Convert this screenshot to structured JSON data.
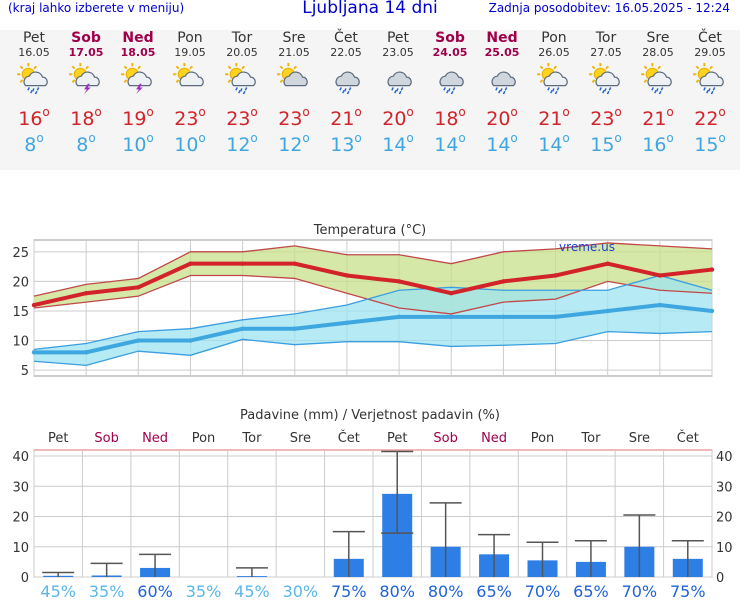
{
  "header": {
    "left": "(kraj lahko izberete v meniju)",
    "title": "Ljubljana 14 dni",
    "updated": "Zadnja posodobitev: 16.05.2025 - 12:24"
  },
  "colors": {
    "weekday": "#333333",
    "weekend": "#a0004a",
    "tmax": "#d2232a",
    "tmin": "#3fa7e0",
    "precip_bar": "#2d7fe6",
    "grid": "#cccccc"
  },
  "days": [
    {
      "name": "Pet",
      "date": "16.05",
      "weekend": false,
      "icon": "sun-cloud-rain-icon",
      "tmax": "16",
      "tmin": "8"
    },
    {
      "name": "Sob",
      "date": "17.05",
      "weekend": true,
      "icon": "sun-cloud-thunder-icon",
      "tmax": "18",
      "tmin": "8"
    },
    {
      "name": "Ned",
      "date": "18.05",
      "weekend": true,
      "icon": "sun-cloud-thunder-icon",
      "tmax": "19",
      "tmin": "10"
    },
    {
      "name": "Pon",
      "date": "19.05",
      "weekend": false,
      "icon": "sun-cloud-icon",
      "tmax": "23",
      "tmin": "10"
    },
    {
      "name": "Tor",
      "date": "20.05",
      "weekend": false,
      "icon": "sun-cloud-rain-icon",
      "tmax": "23",
      "tmin": "12"
    },
    {
      "name": "Sre",
      "date": "21.05",
      "weekend": false,
      "icon": "sun-cloudy-icon",
      "tmax": "23",
      "tmin": "12"
    },
    {
      "name": "Čet",
      "date": "22.05",
      "weekend": false,
      "icon": "cloud-rain-icon",
      "tmax": "21",
      "tmin": "13"
    },
    {
      "name": "Pet",
      "date": "23.05",
      "weekend": false,
      "icon": "cloud-rain-icon",
      "tmax": "20",
      "tmin": "14"
    },
    {
      "name": "Sob",
      "date": "24.05",
      "weekend": true,
      "icon": "cloud-rain-icon",
      "tmax": "18",
      "tmin": "14"
    },
    {
      "name": "Ned",
      "date": "25.05",
      "weekend": true,
      "icon": "cloud-rain-icon",
      "tmax": "20",
      "tmin": "14"
    },
    {
      "name": "Pon",
      "date": "26.05",
      "weekend": false,
      "icon": "sun-cloud-rain-icon",
      "tmax": "21",
      "tmin": "14"
    },
    {
      "name": "Tor",
      "date": "27.05",
      "weekend": false,
      "icon": "sun-cloud-rain-icon",
      "tmax": "23",
      "tmin": "15"
    },
    {
      "name": "Sre",
      "date": "28.05",
      "weekend": false,
      "icon": "sun-cloud-rain-icon",
      "tmax": "21",
      "tmin": "16"
    },
    {
      "name": "Čet",
      "date": "29.05",
      "weekend": false,
      "icon": "sun-cloud-rain-icon",
      "tmax": "22",
      "tmin": "15"
    }
  ],
  "chart_data": [
    {
      "type": "line",
      "title": "Temperatura (°C)",
      "watermark": "vreme.us",
      "ylim": [
        4,
        27
      ],
      "yticks": [
        5,
        10,
        15,
        20,
        25
      ],
      "grid": true,
      "series": [
        {
          "color": "#d2232a",
          "values": [
            16,
            18,
            19,
            23,
            23,
            23,
            21,
            20,
            18,
            20,
            21,
            23,
            21,
            22
          ]
        },
        {
          "color": "#3fa7e0",
          "values": [
            8,
            8,
            10,
            10,
            12,
            12,
            13,
            14,
            14,
            14,
            14,
            15,
            16,
            15
          ]
        },
        {
          "color": "#c8e08a",
          "upper": [
            17.5,
            19.5,
            20.5,
            25,
            25,
            26,
            24.5,
            24.5,
            23,
            25,
            25.5,
            26.5,
            26,
            25.5
          ],
          "lower": [
            15.5,
            16.5,
            17.5,
            21,
            21,
            20.5,
            18,
            15.5,
            14.5,
            16.5,
            17,
            20,
            18.5,
            18
          ]
        },
        {
          "color": "#9ee3f0",
          "upper": [
            8.5,
            9.5,
            11.5,
            12,
            13.5,
            14.5,
            16,
            18.5,
            19,
            18.5,
            18.5,
            18.5,
            21,
            18.5
          ],
          "lower": [
            6.5,
            5.8,
            8.2,
            7.5,
            10.2,
            9.3,
            9.8,
            9.8,
            9,
            9.2,
            9.5,
            11.5,
            11.2,
            11.5
          ]
        }
      ]
    },
    {
      "type": "bar",
      "title": "Padavine (mm) / Verjetnost padavin (%)",
      "categories": [
        "Pet",
        "Sob",
        "Ned",
        "Pon",
        "Tor",
        "Sre",
        "Čet",
        "Pet",
        "Sob",
        "Ned",
        "Pon",
        "Tor",
        "Sre",
        "Čet"
      ],
      "weekend": [
        false,
        true,
        true,
        false,
        false,
        false,
        false,
        false,
        true,
        true,
        false,
        false,
        false,
        false
      ],
      "ylim": [
        0,
        42
      ],
      "yticks": [
        0,
        10,
        20,
        30,
        40
      ],
      "values": [
        0.4,
        0.5,
        3,
        0,
        0.3,
        0,
        6,
        27.5,
        10,
        7.5,
        5.5,
        5,
        10,
        6
      ],
      "error_high": [
        1.5,
        4.5,
        7.5,
        0,
        3,
        0,
        15,
        41.5,
        24.5,
        14,
        11.5,
        12,
        20.5,
        12
      ],
      "error_low": [
        0,
        0,
        0,
        0,
        0,
        0,
        0,
        14.5,
        0,
        0,
        0,
        0,
        0,
        0
      ],
      "probability": [
        "45%",
        "35%",
        "60%",
        "35%",
        "45%",
        "30%",
        "75%",
        "80%",
        "80%",
        "65%",
        "70%",
        "65%",
        "70%",
        "75%"
      ],
      "probability_highlight": [
        false,
        false,
        true,
        false,
        false,
        false,
        true,
        true,
        true,
        true,
        true,
        true,
        true,
        true
      ]
    }
  ]
}
